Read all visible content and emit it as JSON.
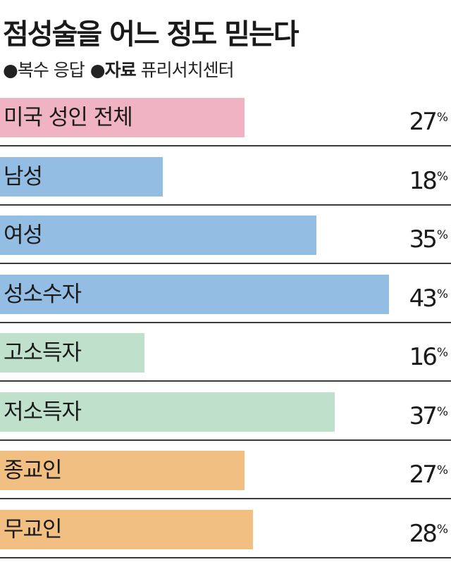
{
  "header": {
    "title": "점성술을 어느 정도 믿는다",
    "note_bullet": "●",
    "note": "복수 응답",
    "source_bullet": "●",
    "source_label": "자료",
    "source": "퓨리서치센터"
  },
  "colors": {
    "pink": "#f0b3c2",
    "blue": "#94bde3",
    "green": "#bfe0cb",
    "orange": "#f2bf83",
    "rule": "#3a3a3a"
  },
  "chart_data": {
    "type": "bar",
    "orientation": "horizontal",
    "xlim": [
      0,
      43
    ],
    "unit": "%",
    "categories": [
      "미국 성인 전체",
      "남성",
      "여성",
      "성소수자",
      "고소득자",
      "저소득자",
      "종교인",
      "무교인"
    ],
    "values": [
      27,
      18,
      35,
      43,
      16,
      37,
      27,
      28
    ],
    "value_labels": [
      "27",
      "18",
      "35",
      "43",
      "16",
      "37",
      "27",
      "28"
    ],
    "bar_colors": [
      "#f0b3c2",
      "#94bde3",
      "#94bde3",
      "#94bde3",
      "#bfe0cb",
      "#bfe0cb",
      "#f2bf83",
      "#f2bf83"
    ]
  }
}
